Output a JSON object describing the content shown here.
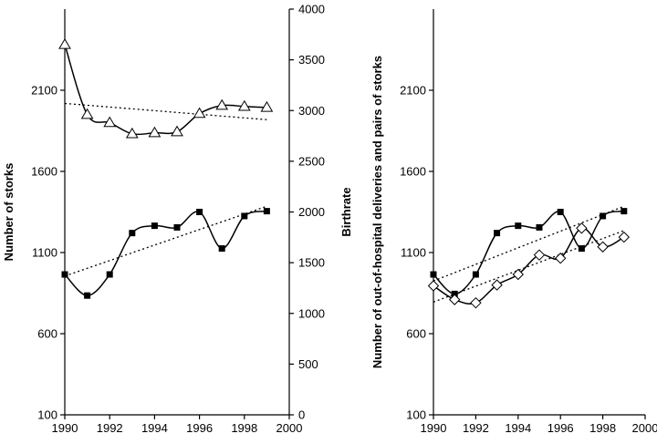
{
  "chart_data": [
    {
      "type": "line",
      "title": "",
      "xlabel": "",
      "ylabel": "Number of storks",
      "y2label": "Birthrate",
      "xlim": [
        1990,
        2000
      ],
      "ylim": [
        100,
        2600
      ],
      "y2lim": [
        0,
        4000
      ],
      "xticks": [
        "1990",
        "1992",
        "1994",
        "1996",
        "1998",
        "2000"
      ],
      "yticks": [
        "100",
        "600",
        "1100",
        "1600",
        "2100"
      ],
      "y2ticks": [
        "0",
        "500",
        "1000",
        "1500",
        "2000",
        "2500",
        "3000",
        "3500",
        "4000"
      ],
      "grid": false,
      "x": [
        1990,
        1991,
        1992,
        1993,
        1994,
        1995,
        1996,
        1997,
        1998,
        1999
      ],
      "series": [
        {
          "axis": "left",
          "marker": "filled-square",
          "values": [
            965,
            835,
            965,
            1220,
            1265,
            1255,
            1350,
            1125,
            1325,
            1355
          ],
          "trend": [
            955,
            1385
          ]
        },
        {
          "axis": "right",
          "marker": "open-triangle",
          "values": [
            3650,
            2960,
            2880,
            2770,
            2780,
            2790,
            2970,
            3050,
            3040,
            3030
          ],
          "trend": [
            3070,
            2910
          ]
        }
      ]
    },
    {
      "type": "line",
      "title": "",
      "xlabel": "",
      "ylabel": "Number of out-of-hospital deliveries and pairs of storks",
      "xlim": [
        1990,
        2000
      ],
      "ylim": [
        100,
        2600
      ],
      "xticks": [
        "1990",
        "1992",
        "1994",
        "1996",
        "1998",
        "2000"
      ],
      "yticks": [
        "100",
        "600",
        "1100",
        "1600",
        "2100"
      ],
      "grid": false,
      "x": [
        1990,
        1991,
        1992,
        1993,
        1994,
        1995,
        1996,
        1997,
        1998,
        1999
      ],
      "series": [
        {
          "marker": "filled-square",
          "values": [
            965,
            845,
            965,
            1220,
            1265,
            1255,
            1350,
            1125,
            1325,
            1355
          ],
          "trend": [
            925,
            1385
          ]
        },
        {
          "marker": "open-diamond",
          "values": [
            895,
            810,
            790,
            900,
            965,
            1085,
            1065,
            1250,
            1135,
            1195
          ],
          "trend": [
            795,
            1235
          ]
        }
      ]
    }
  ]
}
